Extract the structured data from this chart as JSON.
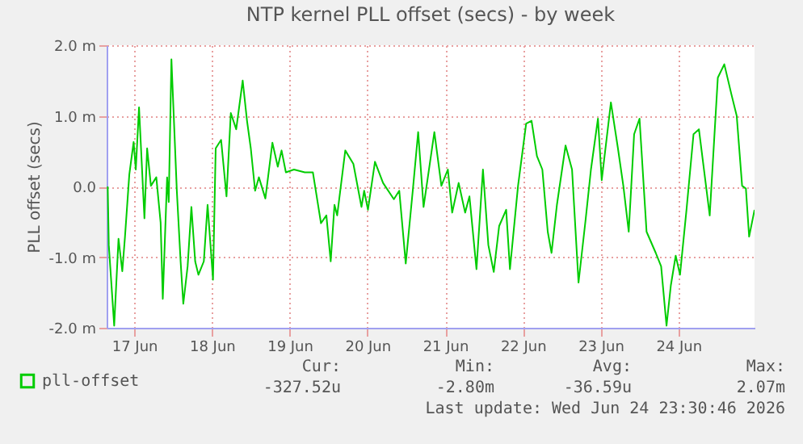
{
  "chart_data": {
    "type": "line",
    "title": "NTP kernel PLL offset (secs) - by week",
    "ylabel": "PLL offset (secs)",
    "x": [
      "2026-06-16T15:50",
      "2026-06-16T16:10",
      "2026-06-16T17:50",
      "2026-06-16T19:10",
      "2026-06-16T20:20",
      "2026-06-16T21:10",
      "2026-06-16T22:30",
      "2026-06-16T23:50",
      "2026-06-17T00:30",
      "2026-06-17T01:30",
      "2026-06-17T03:10",
      "2026-06-17T04:00",
      "2026-06-17T05:10",
      "2026-06-17T06:50",
      "2026-06-17T08:10",
      "2026-06-17T08:50",
      "2026-06-17T10:10",
      "2026-06-17T10:40",
      "2026-06-17T11:30",
      "2026-06-17T13:10",
      "2026-06-17T14:20",
      "2026-06-17T15:10",
      "2026-06-17T16:30",
      "2026-06-17T17:40",
      "2026-06-17T18:50",
      "2026-06-17T19:50",
      "2026-06-17T21:30",
      "2026-06-17T22:40",
      "2026-06-18T00:20",
      "2026-06-18T01:10",
      "2026-06-18T02:50",
      "2026-06-18T04:30",
      "2026-06-18T05:50",
      "2026-06-18T07:30",
      "2026-06-18T09:30",
      "2026-06-18T10:50",
      "2026-06-18T12:00",
      "2026-06-18T13:20",
      "2026-06-18T14:30",
      "2026-06-18T16:30",
      "2026-06-18T18:40",
      "2026-06-18T20:20",
      "2026-06-18T21:30",
      "2026-06-18T22:50",
      "2026-06-19T01:20",
      "2026-06-19T04:40",
      "2026-06-19T07:10",
      "2026-06-19T09:40",
      "2026-06-19T11:20",
      "2026-06-19T12:40",
      "2026-06-19T13:50",
      "2026-06-19T14:40",
      "2026-06-19T17:10",
      "2026-06-19T19:40",
      "2026-06-19T22:10",
      "2026-06-19T23:00",
      "2026-06-20T00:10",
      "2026-06-20T02:20",
      "2026-06-20T04:50",
      "2026-06-20T08:10",
      "2026-06-20T09:50",
      "2026-06-20T11:50",
      "2026-06-20T14:00",
      "2026-06-20T15:40",
      "2026-06-20T17:20",
      "2026-06-20T20:40",
      "2026-06-20T22:50",
      "2026-06-21T00:50",
      "2026-06-21T02:10",
      "2026-06-21T04:10",
      "2026-06-21T06:10",
      "2026-06-21T07:30",
      "2026-06-21T09:40",
      "2026-06-21T11:40",
      "2026-06-21T13:20",
      "2026-06-21T15:00",
      "2026-06-21T16:40",
      "2026-06-21T18:50",
      "2026-06-21T20:00",
      "2026-06-21T22:30",
      "2026-06-22T01:00",
      "2026-06-22T02:40",
      "2026-06-22T04:20",
      "2026-06-22T06:00",
      "2026-06-22T07:40",
      "2026-06-22T08:50",
      "2026-06-22T10:30",
      "2026-06-22T13:10",
      "2026-06-22T15:10",
      "2026-06-22T17:10",
      "2026-06-22T19:20",
      "2026-06-22T21:00",
      "2026-06-22T23:10",
      "2026-06-23T00:20",
      "2026-06-23T03:10",
      "2026-06-23T05:20",
      "2026-06-23T07:00",
      "2026-06-23T08:40",
      "2026-06-23T10:20",
      "2026-06-23T12:00",
      "2026-06-23T14:10",
      "2026-06-23T17:00",
      "2026-06-23T18:40",
      "2026-06-23T20:20",
      "2026-06-23T21:40",
      "2026-06-23T23:10",
      "2026-06-24T00:30",
      "2026-06-24T02:30",
      "2026-06-24T04:40",
      "2026-06-24T06:20",
      "2026-06-24T09:40",
      "2026-06-24T12:10",
      "2026-06-24T14:10",
      "2026-06-24T16:20",
      "2026-06-24T18:00",
      "2026-06-24T19:40",
      "2026-06-24T20:50",
      "2026-06-24T21:50",
      "2026-06-24T23:30"
    ],
    "series": [
      {
        "name": "pll-offset",
        "color": "#00cc00",
        "values": [
          0.0,
          -0.83,
          -1.97,
          -0.74,
          -1.2,
          -0.71,
          0.17,
          0.63,
          0.24,
          1.12,
          -0.45,
          0.54,
          0.01,
          0.13,
          -0.51,
          -1.59,
          0.13,
          -0.22,
          1.8,
          -0.06,
          -1.06,
          -1.66,
          -1.13,
          -0.29,
          -1.06,
          -1.25,
          -1.06,
          -0.26,
          -1.32,
          0.54,
          0.66,
          -0.14,
          1.04,
          0.81,
          1.5,
          0.93,
          0.54,
          -0.06,
          0.13,
          -0.17,
          0.62,
          0.28,
          0.51,
          0.2,
          0.24,
          0.2,
          0.2,
          -0.52,
          -0.41,
          -1.06,
          -0.26,
          -0.41,
          0.51,
          0.32,
          -0.29,
          -0.06,
          -0.33,
          0.35,
          0.05,
          -0.18,
          -0.06,
          -1.09,
          -0.06,
          0.77,
          -0.29,
          0.77,
          0.01,
          0.24,
          -0.37,
          0.05,
          -0.37,
          -0.14,
          -1.17,
          0.24,
          -0.83,
          -1.21,
          -0.56,
          -0.33,
          -1.17,
          0.01,
          0.89,
          0.93,
          0.43,
          0.24,
          -0.64,
          -0.94,
          -0.26,
          0.58,
          0.24,
          -1.36,
          -0.48,
          0.24,
          0.96,
          0.09,
          1.19,
          0.54,
          0.01,
          -0.64,
          0.74,
          0.96,
          -0.64,
          -0.94,
          -1.13,
          -1.97,
          -1.4,
          -0.98,
          -1.25,
          -0.33,
          0.74,
          0.81,
          -0.41,
          1.54,
          1.73,
          1.31,
          1.0,
          0.01,
          -0.03,
          -0.71,
          -0.33
        ]
      }
    ],
    "xlim": [
      "2026-06-16T15:30",
      "2026-06-24T23:30"
    ],
    "xticks": [
      {
        "value": "2026-06-17",
        "label": "17 Jun"
      },
      {
        "value": "2026-06-18",
        "label": "18 Jun"
      },
      {
        "value": "2026-06-19",
        "label": "19 Jun"
      },
      {
        "value": "2026-06-20",
        "label": "20 Jun"
      },
      {
        "value": "2026-06-21",
        "label": "21 Jun"
      },
      {
        "value": "2026-06-22",
        "label": "22 Jun"
      },
      {
        "value": "2026-06-23",
        "label": "23 Jun"
      },
      {
        "value": "2026-06-24",
        "label": "24 Jun"
      }
    ],
    "ylim": [
      -2,
      2
    ],
    "yticks": [
      {
        "value": -2,
        "label": "-2.0 m"
      },
      {
        "value": -1,
        "label": "-1.0 m"
      },
      {
        "value": 0,
        "label": "0.0"
      },
      {
        "value": 1,
        "label": "1.0 m"
      },
      {
        "value": 2,
        "label": "2.0 m"
      }
    ],
    "grid": true,
    "legend": "bottom",
    "marker": "none",
    "line_style": "solid",
    "annotations": [
      "Cur:",
      "Min:",
      "Avg:",
      "Max:",
      "-327.52u",
      "-2.80m",
      "-36.59u",
      "2.07m",
      "Last update: Wed Jun 24 23:30:46 2026"
    ]
  }
}
